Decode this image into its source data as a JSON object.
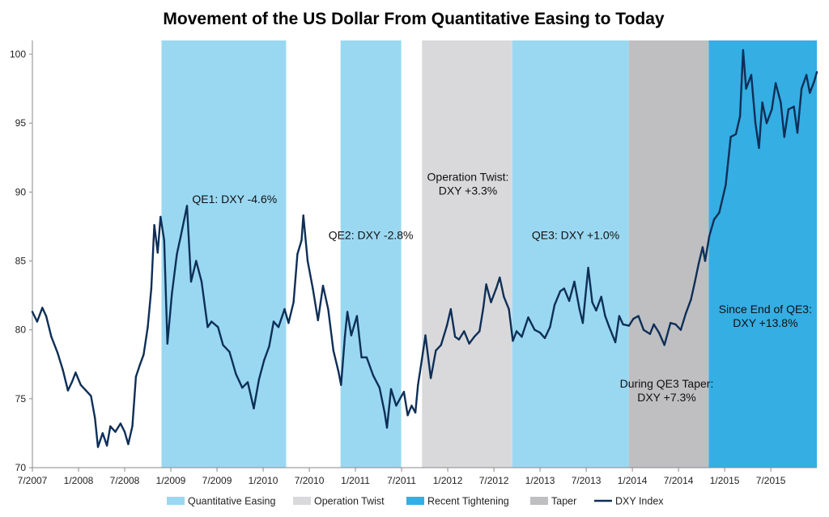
{
  "chart_data": {
    "type": "line",
    "title": "Movement of the US Dollar From Quantitative Easing to Today",
    "xlabel": "",
    "ylabel": "",
    "x_range": [
      "2007-07",
      "2015-12"
    ],
    "ylim": [
      70,
      101
    ],
    "yticks": [
      70,
      75,
      80,
      85,
      90,
      95,
      100
    ],
    "ytick_labels": [
      "70",
      "75",
      "80",
      "85",
      "90",
      "95",
      "100"
    ],
    "xticks": [
      "7/2007",
      "1/2008",
      "7/2008",
      "1/2009",
      "7/2009",
      "1/2010",
      "7/2010",
      "1/2011",
      "7/2011",
      "1/2012",
      "7/2012",
      "1/2013",
      "7/2013",
      "1/2014",
      "7/2014",
      "1/2015",
      "7/2015"
    ],
    "grid": false,
    "legend_position": "bottom",
    "colors": {
      "quantitative_easing": "#9ad8f2",
      "operation_twist": "#d9d9db",
      "recent_tightening": "#35aee3",
      "taper": "#bfbfc1",
      "dxy_index": "#0e2f57"
    },
    "legend": [
      {
        "key": "quantitative_easing",
        "label": "Quantitative Easing",
        "kind": "band"
      },
      {
        "key": "operation_twist",
        "label": "Operation Twist",
        "kind": "band"
      },
      {
        "key": "recent_tightening",
        "label": "Recent Tightening",
        "kind": "band"
      },
      {
        "key": "taper",
        "label": "Taper",
        "kind": "band"
      },
      {
        "key": "dxy_index",
        "label": "DXY Index",
        "kind": "line"
      }
    ],
    "bands": [
      {
        "category": "quantitative_easing",
        "start": "2008-11-25",
        "end": "2010-03-31"
      },
      {
        "category": "quantitative_easing",
        "start": "2010-11-03",
        "end": "2011-06-30"
      },
      {
        "category": "operation_twist",
        "start": "2011-09-21",
        "end": "2012-09-13"
      },
      {
        "category": "quantitative_easing",
        "start": "2012-09-13",
        "end": "2013-12-18"
      },
      {
        "category": "taper",
        "start": "2013-12-18",
        "end": "2014-10-29"
      },
      {
        "category": "recent_tightening",
        "start": "2014-10-29",
        "end": "2015-12-31"
      }
    ],
    "annotations": [
      {
        "lines": [
          "QE1: DXY  -4.6%"
        ],
        "date": "2009-09-10",
        "y": 89.2
      },
      {
        "lines": [
          "QE2: DXY  -2.8%"
        ],
        "date": "2011-03-01",
        "y": 86.6
      },
      {
        "lines": [
          "Operation Twist:",
          "DXY +3.3%"
        ],
        "date": "2012-03-20",
        "y": 90.8
      },
      {
        "lines": [
          "QE3: DXY  +1.0%"
        ],
        "date": "2013-05-20",
        "y": 86.6
      },
      {
        "lines": [
          "During QE3 Taper:",
          "DXY +7.3%"
        ],
        "date": "2014-05-15",
        "y": 75.8
      },
      {
        "lines": [
          "Since End of QE3:",
          "DXY +13.8%"
        ],
        "date": "2015-06-10",
        "y": 81.2
      }
    ],
    "series": [
      {
        "name": "DXY Index",
        "points": [
          [
            "2007-07-01",
            81.3
          ],
          [
            "2007-07-20",
            80.6
          ],
          [
            "2007-08-10",
            81.6
          ],
          [
            "2007-08-25",
            81.0
          ],
          [
            "2007-09-15",
            79.5
          ],
          [
            "2007-10-10",
            78.3
          ],
          [
            "2007-10-30",
            77.1
          ],
          [
            "2007-11-20",
            75.6
          ],
          [
            "2007-12-05",
            76.2
          ],
          [
            "2007-12-20",
            76.9
          ],
          [
            "2008-01-10",
            76.0
          ],
          [
            "2008-01-30",
            75.6
          ],
          [
            "2008-02-20",
            75.2
          ],
          [
            "2008-03-05",
            73.6
          ],
          [
            "2008-03-17",
            71.5
          ],
          [
            "2008-04-05",
            72.5
          ],
          [
            "2008-04-22",
            71.6
          ],
          [
            "2008-05-05",
            73.0
          ],
          [
            "2008-05-25",
            72.6
          ],
          [
            "2008-06-15",
            73.2
          ],
          [
            "2008-07-01",
            72.6
          ],
          [
            "2008-07-15",
            71.7
          ],
          [
            "2008-08-01",
            73.0
          ],
          [
            "2008-08-15",
            76.6
          ],
          [
            "2008-09-01",
            77.5
          ],
          [
            "2008-09-15",
            78.2
          ],
          [
            "2008-10-01",
            80.2
          ],
          [
            "2008-10-15",
            83.0
          ],
          [
            "2008-10-27",
            87.6
          ],
          [
            "2008-11-10",
            85.6
          ],
          [
            "2008-11-21",
            88.2
          ],
          [
            "2008-12-05",
            86.5
          ],
          [
            "2008-12-18",
            79.0
          ],
          [
            "2009-01-05",
            82.6
          ],
          [
            "2009-01-25",
            85.5
          ],
          [
            "2009-02-10",
            86.8
          ],
          [
            "2009-03-04",
            89.0
          ],
          [
            "2009-03-20",
            83.5
          ],
          [
            "2009-04-10",
            85.0
          ],
          [
            "2009-05-01",
            83.5
          ],
          [
            "2009-05-25",
            80.2
          ],
          [
            "2009-06-10",
            80.6
          ],
          [
            "2009-07-05",
            80.2
          ],
          [
            "2009-07-25",
            78.9
          ],
          [
            "2009-08-20",
            78.4
          ],
          [
            "2009-09-15",
            76.8
          ],
          [
            "2009-10-10",
            75.8
          ],
          [
            "2009-11-01",
            76.2
          ],
          [
            "2009-11-25",
            74.3
          ],
          [
            "2009-12-15",
            76.4
          ],
          [
            "2010-01-05",
            77.8
          ],
          [
            "2010-01-25",
            78.8
          ],
          [
            "2010-02-12",
            80.6
          ],
          [
            "2010-03-01",
            80.2
          ],
          [
            "2010-03-25",
            81.5
          ],
          [
            "2010-04-10",
            80.5
          ],
          [
            "2010-04-30",
            82.0
          ],
          [
            "2010-05-15",
            85.5
          ],
          [
            "2010-06-01",
            86.5
          ],
          [
            "2010-06-08",
            88.3
          ],
          [
            "2010-06-25",
            85.0
          ],
          [
            "2010-07-15",
            83.0
          ],
          [
            "2010-08-05",
            80.7
          ],
          [
            "2010-08-25",
            83.2
          ],
          [
            "2010-09-15",
            81.5
          ],
          [
            "2010-10-05",
            78.5
          ],
          [
            "2010-10-25",
            77.0
          ],
          [
            "2010-11-05",
            76.0
          ],
          [
            "2010-11-20",
            79.5
          ],
          [
            "2010-11-30",
            81.3
          ],
          [
            "2010-12-15",
            79.6
          ],
          [
            "2011-01-07",
            81.0
          ],
          [
            "2011-01-25",
            78.0
          ],
          [
            "2011-02-15",
            78.0
          ],
          [
            "2011-03-10",
            76.7
          ],
          [
            "2011-04-05",
            75.8
          ],
          [
            "2011-04-25",
            74.0
          ],
          [
            "2011-05-04",
            72.9
          ],
          [
            "2011-05-20",
            75.7
          ],
          [
            "2011-06-10",
            74.5
          ],
          [
            "2011-06-25",
            75.0
          ],
          [
            "2011-07-10",
            75.5
          ],
          [
            "2011-07-25",
            73.8
          ],
          [
            "2011-08-10",
            74.5
          ],
          [
            "2011-08-25",
            74.0
          ],
          [
            "2011-09-05",
            76.0
          ],
          [
            "2011-09-20",
            77.8
          ],
          [
            "2011-10-04",
            79.6
          ],
          [
            "2011-10-25",
            76.5
          ],
          [
            "2011-11-15",
            78.5
          ],
          [
            "2011-12-05",
            78.9
          ],
          [
            "2011-12-28",
            80.3
          ],
          [
            "2012-01-13",
            81.5
          ],
          [
            "2012-01-30",
            79.5
          ],
          [
            "2012-02-15",
            79.3
          ],
          [
            "2012-03-05",
            79.9
          ],
          [
            "2012-03-25",
            79.0
          ],
          [
            "2012-04-15",
            79.5
          ],
          [
            "2012-05-05",
            79.9
          ],
          [
            "2012-05-20",
            81.6
          ],
          [
            "2012-06-01",
            83.3
          ],
          [
            "2012-06-20",
            82.0
          ],
          [
            "2012-07-10",
            83.0
          ],
          [
            "2012-07-24",
            83.8
          ],
          [
            "2012-08-10",
            82.4
          ],
          [
            "2012-08-30",
            81.5
          ],
          [
            "2012-09-15",
            79.2
          ],
          [
            "2012-09-30",
            79.9
          ],
          [
            "2012-10-20",
            79.5
          ],
          [
            "2012-11-15",
            80.9
          ],
          [
            "2012-12-10",
            80.0
          ],
          [
            "2012-12-31",
            79.8
          ],
          [
            "2013-01-20",
            79.4
          ],
          [
            "2013-02-10",
            80.2
          ],
          [
            "2013-02-28",
            81.8
          ],
          [
            "2013-03-20",
            82.8
          ],
          [
            "2013-04-05",
            83.0
          ],
          [
            "2013-04-25",
            82.1
          ],
          [
            "2013-05-15",
            83.5
          ],
          [
            "2013-06-05",
            81.5
          ],
          [
            "2013-06-18",
            80.5
          ],
          [
            "2013-07-09",
            84.5
          ],
          [
            "2013-07-25",
            82.0
          ],
          [
            "2013-08-10",
            81.4
          ],
          [
            "2013-08-30",
            82.4
          ],
          [
            "2013-09-15",
            81.0
          ],
          [
            "2013-10-01",
            80.2
          ],
          [
            "2013-10-25",
            79.1
          ],
          [
            "2013-11-10",
            81.0
          ],
          [
            "2013-11-25",
            80.4
          ],
          [
            "2013-12-18",
            80.3
          ],
          [
            "2014-01-05",
            80.8
          ],
          [
            "2014-01-25",
            81.0
          ],
          [
            "2014-02-15",
            80.0
          ],
          [
            "2014-03-10",
            79.7
          ],
          [
            "2014-03-25",
            80.4
          ],
          [
            "2014-04-15",
            79.8
          ],
          [
            "2014-05-06",
            78.9
          ],
          [
            "2014-05-30",
            80.5
          ],
          [
            "2014-06-20",
            80.4
          ],
          [
            "2014-07-10",
            80.0
          ],
          [
            "2014-07-30",
            81.2
          ],
          [
            "2014-08-20",
            82.2
          ],
          [
            "2014-09-05",
            83.5
          ],
          [
            "2014-09-20",
            84.8
          ],
          [
            "2014-10-05",
            86.0
          ],
          [
            "2014-10-15",
            85.0
          ],
          [
            "2014-11-01",
            86.8
          ],
          [
            "2014-11-20",
            88.0
          ],
          [
            "2014-12-10",
            88.5
          ],
          [
            "2015-01-05",
            90.5
          ],
          [
            "2015-01-25",
            94.0
          ],
          [
            "2015-02-15",
            94.2
          ],
          [
            "2015-03-01",
            95.5
          ],
          [
            "2015-03-13",
            100.3
          ],
          [
            "2015-03-25",
            97.5
          ],
          [
            "2015-04-15",
            98.5
          ],
          [
            "2015-05-01",
            95.0
          ],
          [
            "2015-05-15",
            93.2
          ],
          [
            "2015-05-28",
            96.5
          ],
          [
            "2015-06-15",
            95.0
          ],
          [
            "2015-07-05",
            96.0
          ],
          [
            "2015-07-20",
            97.9
          ],
          [
            "2015-08-10",
            96.5
          ],
          [
            "2015-08-24",
            94.0
          ],
          [
            "2015-09-10",
            96.0
          ],
          [
            "2015-10-01",
            96.2
          ],
          [
            "2015-10-15",
            94.3
          ],
          [
            "2015-11-01",
            97.5
          ],
          [
            "2015-11-20",
            98.5
          ],
          [
            "2015-12-03",
            97.2
          ],
          [
            "2015-12-20",
            98.0
          ],
          [
            "2015-12-31",
            98.7
          ]
        ]
      }
    ]
  }
}
